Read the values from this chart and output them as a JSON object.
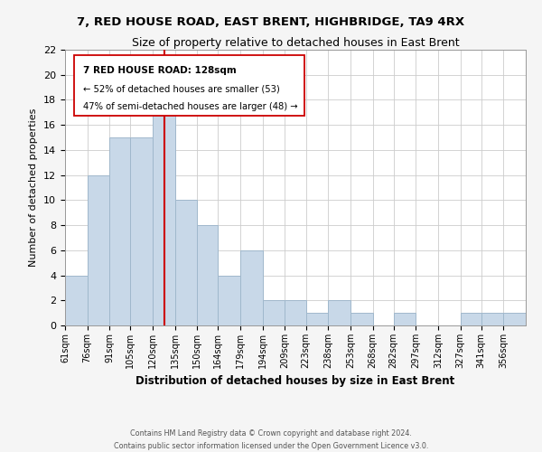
{
  "title": "7, RED HOUSE ROAD, EAST BRENT, HIGHBRIDGE, TA9 4RX",
  "subtitle": "Size of property relative to detached houses in East Brent",
  "xlabel": "Distribution of detached houses by size in East Brent",
  "ylabel": "Number of detached properties",
  "bar_color": "#c8d8e8",
  "bar_edgecolor": "#a0b8cc",
  "vline_x": 128,
  "vline_color": "#cc0000",
  "categories": [
    "61sqm",
    "76sqm",
    "91sqm",
    "105sqm",
    "120sqm",
    "135sqm",
    "150sqm",
    "164sqm",
    "179sqm",
    "194sqm",
    "209sqm",
    "223sqm",
    "238sqm",
    "253sqm",
    "268sqm",
    "282sqm",
    "297sqm",
    "312sqm",
    "327sqm",
    "341sqm",
    "356sqm"
  ],
  "bin_edges": [
    61,
    76,
    91,
    105,
    120,
    135,
    150,
    164,
    179,
    194,
    209,
    223,
    238,
    253,
    268,
    282,
    297,
    312,
    327,
    341,
    356,
    371
  ],
  "counts": [
    4,
    12,
    15,
    15,
    18,
    10,
    8,
    4,
    6,
    2,
    2,
    1,
    2,
    1,
    0,
    1,
    0,
    0,
    1,
    1,
    1
  ],
  "ylim": [
    0,
    22
  ],
  "yticks": [
    0,
    2,
    4,
    6,
    8,
    10,
    12,
    14,
    16,
    18,
    20,
    22
  ],
  "annotation_title": "7 RED HOUSE ROAD: 128sqm",
  "annotation_line1": "← 52% of detached houses are smaller (53)",
  "annotation_line2": "47% of semi-detached houses are larger (48) →",
  "footer1": "Contains HM Land Registry data © Crown copyright and database right 2024.",
  "footer2": "Contains public sector information licensed under the Open Government Licence v3.0.",
  "bg_color": "#f5f5f5",
  "plot_bg_color": "#ffffff",
  "grid_color": "#cccccc"
}
